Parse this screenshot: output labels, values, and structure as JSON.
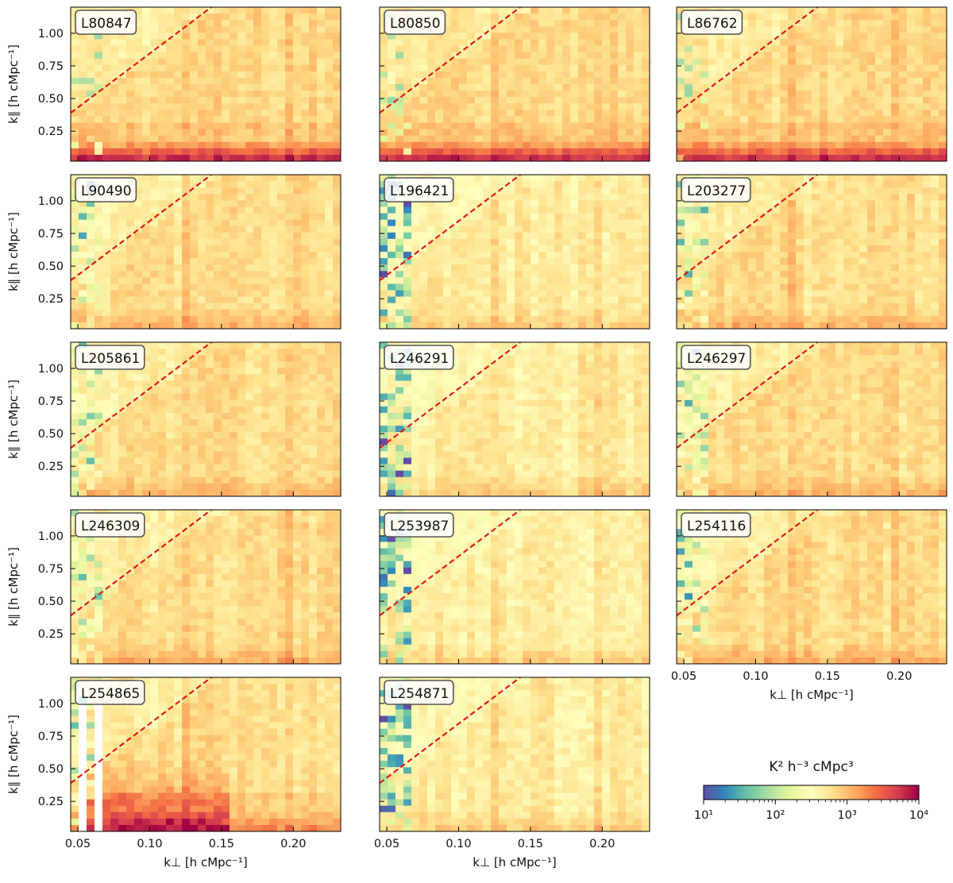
{
  "chart_data": {
    "type": "heatmap",
    "colormap": "Spectral_r",
    "scale": "log",
    "x_range": [
      0.045,
      0.233
    ],
    "y_range": [
      0.02,
      1.2
    ],
    "xticks": [
      0.05,
      0.1,
      0.15,
      0.2
    ],
    "xtick_labels": [
      "0.05",
      "0.10",
      "0.15",
      "0.20"
    ],
    "yticks": [
      0.25,
      0.5,
      0.75,
      1.0
    ],
    "ytick_labels": [
      "0.25",
      "0.50",
      "0.75",
      "1.00"
    ],
    "xlabel": "k⊥ [h cMpc⁻¹]",
    "ylabel": "k∥ [h cMpc⁻¹]",
    "wedge_line": {
      "color": "#e31a1c",
      "style": "dashed",
      "points": [
        [
          0.045,
          0.39
        ],
        [
          0.143,
          1.2
        ]
      ]
    },
    "colorbar": {
      "label": "K² h⁻³ cMpc³",
      "range": [
        10,
        10000
      ],
      "tick_labels": [
        "10¹",
        "10²",
        "10³",
        "10⁴"
      ]
    },
    "panels": [
      {
        "name": "L80847",
        "profile": "strong_low"
      },
      {
        "name": "L80850",
        "profile": "strong_low"
      },
      {
        "name": "L86762",
        "profile": "strong_low"
      },
      {
        "name": "L90490",
        "profile": "normal"
      },
      {
        "name": "L196421",
        "profile": "cool"
      },
      {
        "name": "L203277",
        "profile": "normal"
      },
      {
        "name": "L205861",
        "profile": "normal"
      },
      {
        "name": "L246291",
        "profile": "cool"
      },
      {
        "name": "L246297",
        "profile": "normal"
      },
      {
        "name": "L246309",
        "profile": "normal"
      },
      {
        "name": "L253987",
        "profile": "cool"
      },
      {
        "name": "L254116",
        "profile": "normal"
      },
      {
        "name": "L254865",
        "profile": "hot"
      },
      {
        "name": "L254871",
        "profile": "cool"
      }
    ]
  }
}
